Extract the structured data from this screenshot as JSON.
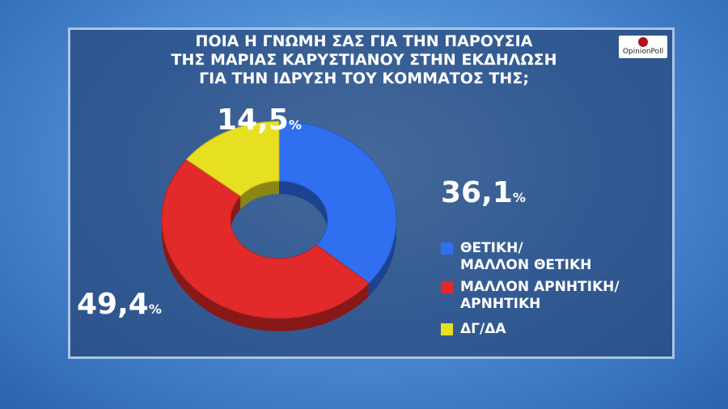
{
  "chart_data": {
    "type": "donut",
    "title": [
      "ΠΟΙΑ Η ΓΝΩΜΗ ΣΑΣ ΓΙΑ ΤΗΝ ΠΑΡΟΥΣΙΑ",
      "ΤΗΣ ΜΑΡΙΑΣ ΚΑΡΥΣΤΙΑΝΟΥ ΣΤΗΝ ΕΚΔΗΛΩΣΗ",
      "ΓΙΑ ΤΗΝ ΙΔΡΥΣΗ ΤΟΥ ΚΟΜΜΑΤΟΣ ΤΗΣ;"
    ],
    "logo": "OpinionPoll",
    "categories": [
      "ΘΕΤΙΚΗ/\nΜΑΛΛΟΝ ΘΕΤΙΚΗ",
      "ΜΑΛΛΟΝ ΑΡΝΗΤΙΚΗ/\nΑΡΝΗΤΙΚΗ",
      "ΔΓ/ΔΑ"
    ],
    "values": [
      36.1,
      49.4,
      14.5
    ],
    "value_labels": [
      "36,1",
      "49,4",
      "14,5"
    ],
    "value_suffix": "%",
    "colors": [
      "#2f6ff0",
      "#e22a2a",
      "#e6e021"
    ]
  }
}
